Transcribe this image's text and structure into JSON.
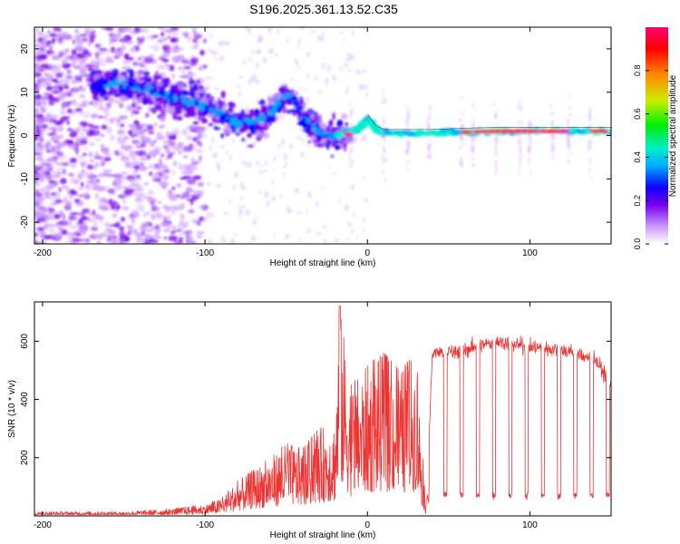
{
  "page": {
    "title": "S196.2025.361.13.52.C35"
  },
  "chart_data": [
    {
      "type": "heatmap",
      "title": "S196.2025.361.13.52.C35",
      "xlabel": "Height of straight line (km)",
      "ylabel": "Frequency (Hz)",
      "xlim": [
        -205,
        150
      ],
      "ylim": [
        -25,
        25
      ],
      "x_ticks": [
        -200,
        -100,
        0,
        100
      ],
      "y_ticks": [
        20,
        10,
        0,
        -10,
        -20
      ],
      "colorbar": {
        "label": "Normalized spectral amplitude",
        "range": [
          0,
          1
        ],
        "ticks": [
          0.0,
          0.2,
          0.4,
          0.6,
          0.8
        ],
        "colors": [
          "#ffffff",
          "#cc99ff",
          "#7700ee",
          "#1100ff",
          "#00aaff",
          "#00eecc",
          "#00ee00",
          "#ccee00",
          "#ff8800",
          "#ff0000",
          "#ff0077"
        ]
      },
      "ridge_line": {
        "x": [
          -165,
          -150,
          -140,
          -130,
          -120,
          -110,
          -100,
          -90,
          -80,
          -70,
          -60,
          -50,
          -45,
          -40,
          -35,
          -30,
          -25,
          -20,
          -15,
          -10,
          -5,
          0,
          5,
          10,
          20,
          40,
          60,
          80,
          100,
          120,
          140,
          150
        ],
        "freq": [
          12,
          12,
          11,
          10,
          9,
          8,
          7,
          5,
          3,
          3,
          5,
          10,
          8,
          4,
          2,
          1,
          0,
          0,
          0.5,
          1,
          1.5,
          4,
          1.5,
          0.5,
          0.5,
          0.5,
          0.8,
          1,
          1,
          1,
          1,
          1
        ]
      }
    },
    {
      "type": "line",
      "title": "",
      "xlabel": "Height of straight line (km)",
      "ylabel": "SNR (10 * v/v)",
      "xlim": [
        -205,
        150
      ],
      "ylim": [
        0,
        735
      ],
      "x_ticks": [
        -200,
        -100,
        0,
        100
      ],
      "y_ticks": [
        200,
        400,
        600
      ],
      "series": [
        {
          "name": "SNR",
          "color": "#ee3333",
          "envelope_x": [
            -205,
            -150,
            -120,
            -100,
            -90,
            -80,
            -70,
            -60,
            -50,
            -40,
            -30,
            -20,
            -17,
            -10,
            0,
            10,
            20,
            30,
            36,
            40,
            60,
            80,
            100,
            120,
            140,
            150
          ],
          "envelope_y": [
            15,
            15,
            25,
            40,
            60,
            120,
            160,
            200,
            250,
            230,
            300,
            330,
            720,
            450,
            520,
            560,
            500,
            560,
            30,
            580,
            590,
            620,
            600,
            590,
            560,
            470
          ],
          "dips_x": [
            48,
            58,
            68,
            78,
            88,
            98,
            108,
            118,
            128,
            138,
            148
          ],
          "dip_value": 70
        }
      ]
    }
  ]
}
